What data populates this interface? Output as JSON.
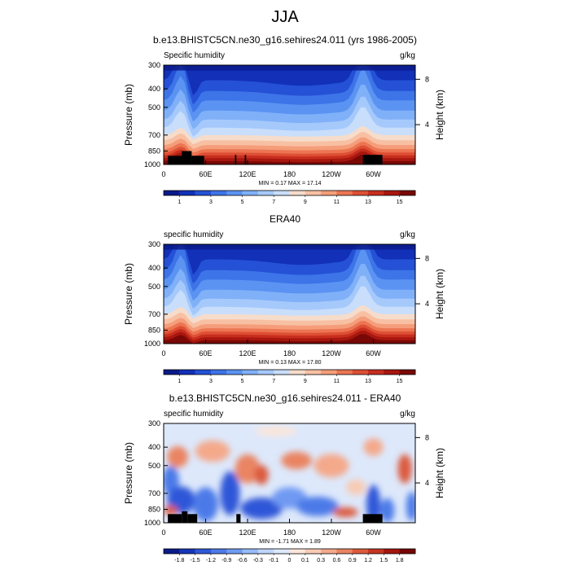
{
  "title": "JJA",
  "panels": [
    {
      "id": "model",
      "title": "b.e13.BHISTC5CN.ne30_g16.sehires24.011 (yrs 1986-2005)",
      "left_label": "Specific humidity",
      "right_label": "g/kg",
      "ylabel": "Pressure (mb)",
      "y2label": "Height (km)",
      "minmax": "MIN =   0.17  MAX =  17.14",
      "colorbar_labels": [
        "1",
        "3",
        "5",
        "7",
        "9",
        "11",
        "13",
        "15"
      ]
    },
    {
      "id": "obs",
      "title": "ERA40",
      "left_label": "specific humidity",
      "right_label": "g/kg",
      "ylabel": "Pressure (mb)",
      "y2label": "Height (km)",
      "minmax": "MIN =   0.13  MAX =  17.80",
      "colorbar_labels": [
        "1",
        "3",
        "5",
        "7",
        "9",
        "11",
        "13",
        "15"
      ]
    },
    {
      "id": "diff",
      "title": "b.e13.BHISTC5CN.ne30_g16.sehires24.011 - ERA40",
      "left_label": "specific humidity",
      "right_label": "g/kg",
      "ylabel": "Pressure (mb)",
      "y2label": "Height (km)",
      "minmax": "MIN =  -1.71  MAX =  1.89",
      "colorbar_labels": [
        "-1.8",
        "-1.5",
        "-1.2",
        "-0.9",
        "-0.6",
        "-0.3",
        "-0.1",
        "0",
        "0.1",
        "0.3",
        "0.6",
        "0.9",
        "1.2",
        "1.5",
        "1.8"
      ]
    }
  ],
  "chart_data": [
    {
      "type": "heatmap",
      "title": "b.e13.BHISTC5CN.ne30_g16.sehires24.011 (yrs 1986-2005)",
      "xlabel": "",
      "ylabel": "Pressure (mb)",
      "y2label": "Height (km)",
      "units": "g/kg",
      "xticks": [
        "0",
        "60E",
        "120E",
        "180",
        "120W",
        "60W"
      ],
      "yticks": [
        300,
        400,
        500,
        700,
        850,
        1000
      ],
      "y2ticks": [
        4,
        8
      ],
      "ylim": [
        1000,
        300
      ],
      "min": 0.17,
      "max": 17.14,
      "colorbar": [
        1,
        3,
        5,
        7,
        9,
        11,
        13,
        15
      ]
    },
    {
      "type": "heatmap",
      "title": "ERA40",
      "xlabel": "",
      "ylabel": "Pressure (mb)",
      "y2label": "Height (km)",
      "units": "g/kg",
      "xticks": [
        "0",
        "60E",
        "120E",
        "180",
        "120W",
        "60W"
      ],
      "yticks": [
        300,
        400,
        500,
        700,
        850,
        1000
      ],
      "y2ticks": [
        4,
        8
      ],
      "ylim": [
        1000,
        300
      ],
      "min": 0.13,
      "max": 17.8,
      "colorbar": [
        1,
        3,
        5,
        7,
        9,
        11,
        13,
        15
      ]
    },
    {
      "type": "heatmap",
      "title": "b.e13.BHISTC5CN.ne30_g16.sehires24.011 - ERA40",
      "xlabel": "",
      "ylabel": "Pressure (mb)",
      "y2label": "Height (km)",
      "units": "g/kg",
      "xticks": [
        "0",
        "60E",
        "120E",
        "180",
        "120W",
        "60W"
      ],
      "yticks": [
        300,
        400,
        500,
        700,
        850,
        1000
      ],
      "y2ticks": [
        4,
        8
      ],
      "ylim": [
        1000,
        300
      ],
      "min": -1.71,
      "max": 1.89,
      "colorbar": [
        -1.8,
        -1.5,
        -1.2,
        -0.9,
        -0.6,
        -0.3,
        -0.1,
        0,
        0.1,
        0.3,
        0.6,
        0.9,
        1.2,
        1.5,
        1.8
      ]
    }
  ]
}
